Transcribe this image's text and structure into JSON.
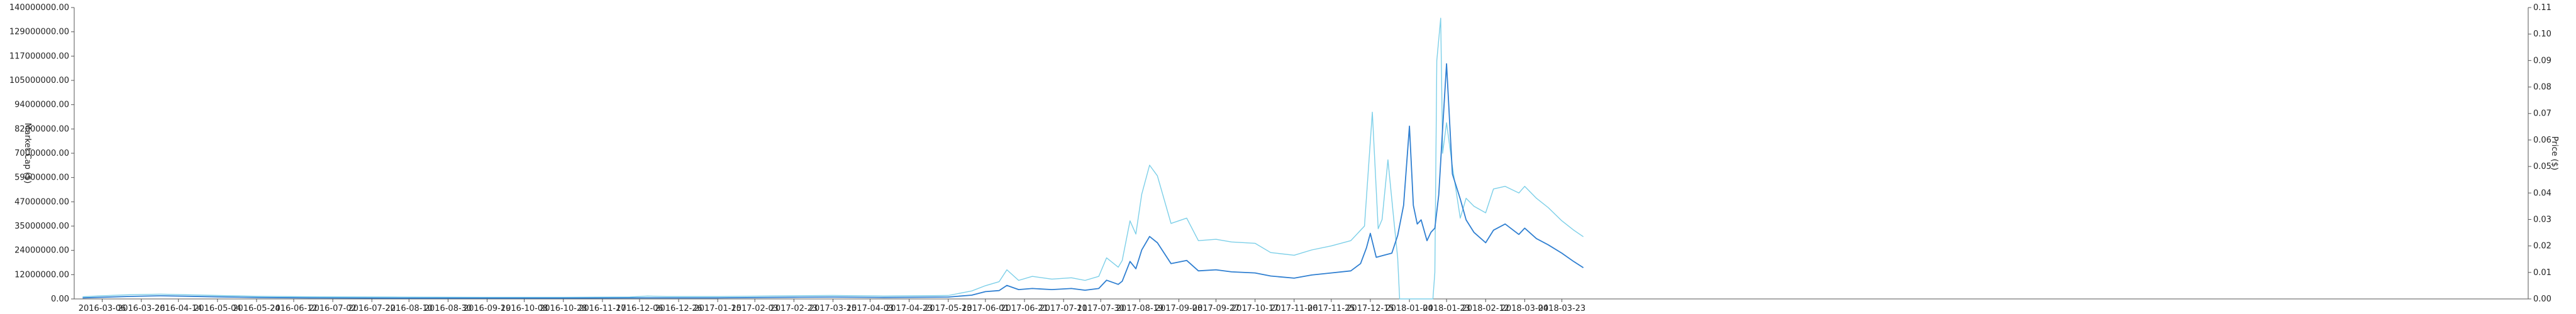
{
  "chart_data": {
    "type": "line",
    "title": "",
    "xlabel": "",
    "ylabel": "Market Cap ($)",
    "y2label": "Price ($)",
    "grid": false,
    "legend": "none",
    "ylim": [
      0,
      140000000
    ],
    "y2lim": [
      0,
      0.11
    ],
    "y_ticks": [
      "0.00",
      "12000000.00",
      "24000000.00",
      "35000000.00",
      "47000000.00",
      "59000000.00",
      "70000000.00",
      "82000000.00",
      "94000000.00",
      "105000000.00",
      "117000000.00",
      "129000000.00",
      "140000000.00"
    ],
    "y2_ticks": [
      "0.00",
      "0.01",
      "0.02",
      "0.03",
      "0.04",
      "0.05",
      "0.06",
      "0.07",
      "0.08",
      "0.09",
      "0.10",
      "0.11"
    ],
    "x_ticks": [
      "2016-03-06",
      "2016-03-26",
      "2016-04-14",
      "2016-05-04",
      "2016-05-24",
      "2016-06-12",
      "2016-07-02",
      "2016-07-22",
      "2016-08-10",
      "2016-08-30",
      "2016-09-19",
      "2016-10-08",
      "2016-10-28",
      "2016-11-17",
      "2016-12-06",
      "2016-12-26",
      "2017-01-15",
      "2017-02-03",
      "2017-02-23",
      "2017-03-15",
      "2017-04-03",
      "2017-04-23",
      "2017-05-13",
      "2017-06-01",
      "2017-06-21",
      "2017-07-11",
      "2017-07-30",
      "2017-08-19",
      "2017-09-08",
      "2017-09-27",
      "2017-10-17",
      "2017-11-06",
      "2017-11-25",
      "2017-12-15",
      "2018-01-04",
      "2018-01-23",
      "2018-02-12",
      "2018-03-04",
      "2018-03-23"
    ],
    "series": [
      {
        "axis": "right",
        "color": "#7ccfe8",
        "x": [
          "2016-02-25",
          "2016-03-06",
          "2016-03-20",
          "2016-04-05",
          "2016-04-18",
          "2016-05-04",
          "2016-05-24",
          "2016-06-20",
          "2016-08-01",
          "2016-09-15",
          "2016-10-28",
          "2016-12-01",
          "2016-12-10",
          "2016-12-20",
          "2017-01-15",
          "2017-02-23",
          "2017-03-15",
          "2017-04-10",
          "2017-05-13",
          "2017-05-25",
          "2017-06-01",
          "2017-06-08",
          "2017-06-12",
          "2017-06-18",
          "2017-06-25",
          "2017-07-05",
          "2017-07-15",
          "2017-07-22",
          "2017-07-29",
          "2017-08-02",
          "2017-08-08",
          "2017-08-10",
          "2017-08-14",
          "2017-08-17",
          "2017-08-20",
          "2017-08-24",
          "2017-08-28",
          "2017-09-04",
          "2017-09-12",
          "2017-09-18",
          "2017-09-27",
          "2017-10-05",
          "2017-10-17",
          "2017-10-25",
          "2017-11-06",
          "2017-11-15",
          "2017-11-25",
          "2017-12-05",
          "2017-12-12",
          "2017-12-16",
          "2017-12-19",
          "2017-12-21",
          "2017-12-24",
          "2017-12-27",
          "2017-12-29",
          "2017-12-30",
          "2018-01-01",
          "2018-01-04",
          "2018-01-05",
          "2018-01-09",
          "2018-01-14",
          "2018-01-16",
          "2018-01-17",
          "2018-01-18",
          "2018-01-20",
          "2018-01-21",
          "2018-01-23",
          "2018-01-26",
          "2018-01-30",
          "2018-02-02",
          "2018-02-06",
          "2018-02-12",
          "2018-02-16",
          "2018-02-22",
          "2018-03-01",
          "2018-03-04",
          "2018-03-10",
          "2018-03-16",
          "2018-03-23",
          "2018-03-29",
          "2018-04-03"
        ],
        "values": [
          0.0008,
          0.0012,
          0.0016,
          0.0018,
          0.0016,
          0.0013,
          0.001,
          0.0008,
          0.0007,
          0.0006,
          0.0006,
          0.0007,
          0.0011,
          0.0009,
          0.0009,
          0.0012,
          0.0013,
          0.0011,
          0.0013,
          0.003,
          0.005,
          0.0065,
          0.011,
          0.007,
          0.0085,
          0.0075,
          0.008,
          0.007,
          0.0085,
          0.0155,
          0.012,
          0.0145,
          0.0295,
          0.0245,
          0.0395,
          0.0505,
          0.0465,
          0.0285,
          0.0305,
          0.022,
          0.0225,
          0.0215,
          0.021,
          0.0175,
          0.0165,
          0.0185,
          0.02,
          0.022,
          0.0275,
          0.0705,
          0.0265,
          0.03,
          0.0525,
          0.03,
          0.0155,
          0.0,
          0.0,
          0.0,
          0.0,
          0.0,
          0.0,
          0.0,
          0.01,
          0.09,
          0.106,
          0.055,
          0.0665,
          0.05,
          0.0305,
          0.038,
          0.035,
          0.0325,
          0.0415,
          0.0425,
          0.04,
          0.0425,
          0.038,
          0.0345,
          0.0295,
          0.026,
          0.0235
        ]
      },
      {
        "axis": "left",
        "color": "#2f7fd1",
        "x": [
          "2016-02-25",
          "2016-03-06",
          "2016-03-20",
          "2016-04-05",
          "2016-04-18",
          "2016-05-04",
          "2016-05-24",
          "2016-06-20",
          "2016-08-01",
          "2016-09-15",
          "2016-10-28",
          "2016-12-06",
          "2017-01-15",
          "2017-02-23",
          "2017-03-15",
          "2017-04-10",
          "2017-05-13",
          "2017-05-25",
          "2017-06-01",
          "2017-06-08",
          "2017-06-12",
          "2017-06-18",
          "2017-06-25",
          "2017-07-05",
          "2017-07-15",
          "2017-07-22",
          "2017-07-29",
          "2017-08-02",
          "2017-08-08",
          "2017-08-10",
          "2017-08-14",
          "2017-08-17",
          "2017-08-20",
          "2017-08-24",
          "2017-08-28",
          "2017-09-04",
          "2017-09-12",
          "2017-09-18",
          "2017-09-27",
          "2017-10-05",
          "2017-10-17",
          "2017-10-25",
          "2017-11-06",
          "2017-11-15",
          "2017-11-25",
          "2017-12-05",
          "2017-12-10",
          "2017-12-13",
          "2017-12-15",
          "2017-12-18",
          "2017-12-22",
          "2017-12-26",
          "2017-12-29",
          "2018-01-01",
          "2018-01-04",
          "2018-01-06",
          "2018-01-08",
          "2018-01-10",
          "2018-01-13",
          "2018-01-15",
          "2018-01-17",
          "2018-01-19",
          "2018-01-21",
          "2018-01-23",
          "2018-01-26",
          "2018-01-30",
          "2018-02-02",
          "2018-02-06",
          "2018-02-12",
          "2018-02-16",
          "2018-02-22",
          "2018-03-01",
          "2018-03-04",
          "2018-03-10",
          "2018-03-16",
          "2018-03-23",
          "2018-03-29",
          "2018-04-03"
        ],
        "values": [
          500000,
          800000,
          1200000,
          1500000,
          1300000,
          1000000,
          700000,
          500000,
          400000,
          400000,
          400000,
          500000,
          500000,
          800000,
          900000,
          700000,
          900000,
          1800000,
          3500000,
          4000000,
          6500000,
          4500000,
          5000000,
          4500000,
          5000000,
          4200000,
          5000000,
          9000000,
          7000000,
          8500000,
          18000000,
          14500000,
          23500000,
          30000000,
          27000000,
          17000000,
          18500000,
          13500000,
          14000000,
          13000000,
          12500000,
          11000000,
          10000000,
          11500000,
          12500000,
          13500000,
          17000000,
          24500000,
          31500000,
          20000000,
          21000000,
          22000000,
          30500000,
          45000000,
          83000000,
          45000000,
          36000000,
          38000000,
          28000000,
          32000000,
          34000000,
          50000000,
          82000000,
          113000000,
          60000000,
          48000000,
          38000000,
          32000000,
          27000000,
          33000000,
          36000000,
          31000000,
          34000000,
          29000000,
          26000000,
          22000000,
          18000000,
          15000000
        ]
      }
    ]
  }
}
